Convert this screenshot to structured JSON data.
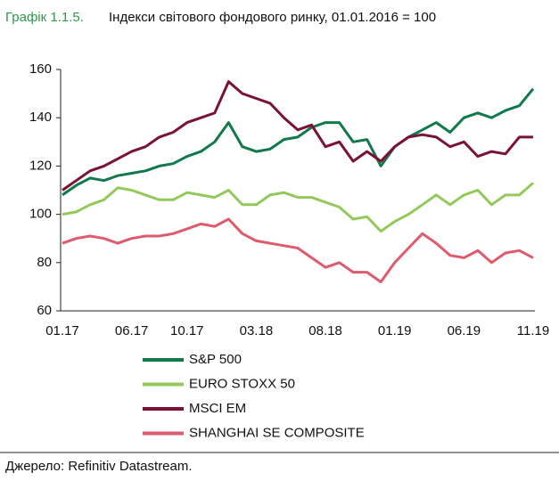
{
  "chart_data": {
    "type": "line",
    "title_label": "Графік 1.1.5.",
    "title": "Індекси світового фондового ринку, 01.01.2016 = 100",
    "source": "Джерело: Refinitiv Datastream.",
    "categories": [
      "01.17",
      null,
      null,
      null,
      null,
      "06.17",
      null,
      null,
      null,
      "10.17",
      null,
      null,
      null,
      null,
      "03.18",
      null,
      null,
      null,
      null,
      "08.18",
      null,
      null,
      null,
      null,
      "01.19",
      null,
      null,
      null,
      null,
      "06.19",
      null,
      null,
      null,
      null,
      "11.19"
    ],
    "ylim": [
      60,
      160
    ],
    "yticks": [
      60,
      80,
      100,
      120,
      140,
      160
    ],
    "grid": false,
    "legend": "bottom",
    "series": [
      {
        "name": "S&P 500",
        "color": "#11794a",
        "values": [
          108,
          112,
          115,
          114,
          116,
          117,
          118,
          120,
          121,
          124,
          126,
          130,
          138,
          128,
          126,
          127,
          131,
          132,
          136,
          138,
          138,
          130,
          131,
          120,
          128,
          132,
          135,
          138,
          134,
          140,
          142,
          140,
          143,
          145,
          152
        ]
      },
      {
        "name": "EURO STOXX 50",
        "color": "#93c95a",
        "values": [
          100,
          101,
          104,
          106,
          111,
          110,
          108,
          106,
          106,
          109,
          108,
          107,
          110,
          104,
          104,
          108,
          109,
          107,
          107,
          105,
          103,
          98,
          99,
          93,
          97,
          100,
          104,
          108,
          104,
          108,
          110,
          104,
          108,
          108,
          113
        ]
      },
      {
        "name": "MSCI EM",
        "color": "#7a1236",
        "values": [
          110,
          114,
          118,
          120,
          123,
          126,
          128,
          132,
          134,
          138,
          140,
          142,
          155,
          150,
          148,
          146,
          140,
          135,
          137,
          128,
          130,
          122,
          126,
          122,
          128,
          132,
          133,
          132,
          128,
          130,
          124,
          126,
          125,
          132,
          132
        ]
      },
      {
        "name": "SHANGHAI SE COMPOSITE",
        "color": "#e05a6e",
        "values": [
          88,
          90,
          91,
          90,
          88,
          90,
          91,
          91,
          92,
          94,
          96,
          95,
          98,
          92,
          89,
          88,
          87,
          86,
          82,
          78,
          80,
          76,
          76,
          72,
          80,
          86,
          92,
          88,
          83,
          82,
          85,
          80,
          84,
          85,
          82
        ]
      }
    ]
  }
}
